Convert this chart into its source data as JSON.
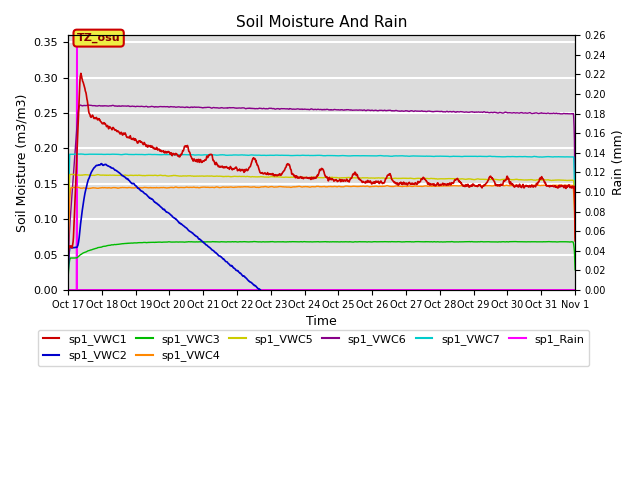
{
  "title": "Soil Moisture And Rain",
  "ylabel_left": "Soil Moisture (m3/m3)",
  "ylabel_right": "Rain (mm)",
  "xlabel": "Time",
  "annotation_text": "TZ_osu",
  "ylim_left": [
    0.0,
    0.36
  ],
  "ylim_right": [
    0.0,
    0.26
  ],
  "xtick_labels": [
    "Oct 17",
    "Oct 18",
    "Oct 19",
    "Oct 20",
    "Oct 21",
    "Oct 22",
    "Oct 23",
    "Oct 24",
    "Oct 25",
    "Oct 26",
    "Oct 27",
    "Oct 28",
    "Oct 29",
    "Oct 30",
    "Oct 31",
    "Nov 1"
  ],
  "background_color": "#dcdcdc",
  "vwc1_color": "#cc0000",
  "vwc2_color": "#0000cc",
  "vwc3_color": "#00bb00",
  "vwc4_color": "#ff8800",
  "vwc5_color": "#cccc00",
  "vwc6_color": "#880088",
  "vwc7_color": "#00cccc",
  "rain_color": "#ff00ff",
  "legend_order": [
    "sp1_VWC1",
    "sp1_VWC2",
    "sp1_VWC3",
    "sp1_VWC4",
    "sp1_VWC5",
    "sp1_VWC6",
    "sp1_VWC7",
    "sp1_Rain"
  ]
}
